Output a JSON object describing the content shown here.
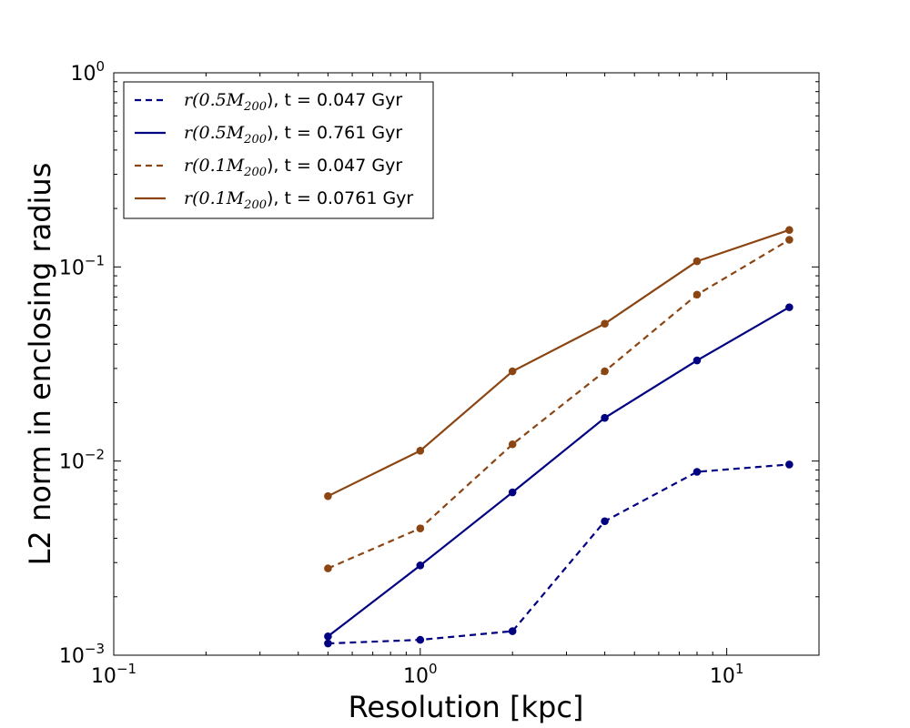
{
  "chart_data": {
    "type": "line",
    "xscale": "log",
    "yscale": "log",
    "xlabel": "Resolution [kpc]",
    "ylabel": "L2 norm in enclosing radius",
    "xlim": [
      0.1,
      20
    ],
    "ylim": [
      0.001,
      1
    ],
    "x_ticks": [
      {
        "value": 0.1,
        "base": "10",
        "exp": "−1"
      },
      {
        "value": 1,
        "base": "10",
        "exp": "0"
      },
      {
        "value": 10,
        "base": "10",
        "exp": "1"
      }
    ],
    "y_ticks": [
      {
        "value": 0.001,
        "base": "10",
        "exp": "−3"
      },
      {
        "value": 0.01,
        "base": "10",
        "exp": "−2"
      },
      {
        "value": 0.1,
        "base": "10",
        "exp": "−1"
      },
      {
        "value": 1,
        "base": "10",
        "exp": "0"
      }
    ],
    "x": [
      0.5,
      1,
      2,
      4,
      8,
      16
    ],
    "series": [
      {
        "name": "r(0.5M200), t = 0.047 Gyr",
        "label_math": "r(0.5M",
        "label_sub": "200",
        "label_rest": "), t = 0.047 Gyr",
        "color": "#000080",
        "linestyle": "dashed",
        "values": [
          0.00115,
          0.0012,
          0.00133,
          0.0049,
          0.0088,
          0.0096
        ]
      },
      {
        "name": "r(0.5M200), t = 0.761 Gyr",
        "label_math": "r(0.5M",
        "label_sub": "200",
        "label_rest": "), t = 0.761 Gyr",
        "color": "#000080",
        "linestyle": "solid",
        "values": [
          0.00125,
          0.0029,
          0.0069,
          0.0167,
          0.033,
          0.062
        ]
      },
      {
        "name": "r(0.1M200), t = 0.047 Gyr",
        "label_math": "r(0.1M",
        "label_sub": "200",
        "label_rest": "), t = 0.047 Gyr",
        "color": "#8B4513",
        "linestyle": "dashed",
        "values": [
          0.0028,
          0.0045,
          0.0122,
          0.029,
          0.072,
          0.138
        ]
      },
      {
        "name": "r(0.1M200), t = 0.0761 Gyr",
        "label_math": "r(0.1M",
        "label_sub": "200",
        "label_rest": "), t = 0.0761 Gyr",
        "color": "#8B4513",
        "linestyle": "solid",
        "values": [
          0.0066,
          0.0113,
          0.029,
          0.051,
          0.107,
          0.155
        ]
      }
    ],
    "legend_position": "top-left",
    "grid": false
  }
}
